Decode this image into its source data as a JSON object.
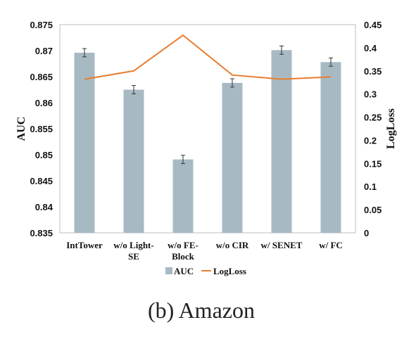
{
  "chart_data": {
    "type": "bar",
    "categories": [
      [
        "IntTower"
      ],
      [
        "w/o Light-",
        "SE"
      ],
      [
        "w/o FE-",
        "Block"
      ],
      [
        "w/o CIR"
      ],
      [
        "w/ SENET"
      ],
      [
        "w/ FC"
      ]
    ],
    "series": [
      {
        "name": "AUC",
        "type": "bar",
        "axis": "left",
        "values": [
          0.8696,
          0.8625,
          0.8491,
          0.8638,
          0.8701,
          0.8678
        ],
        "error": [
          0.0008,
          0.0008,
          0.0008,
          0.0008,
          0.0008,
          0.0008
        ],
        "color": "#a7bac3"
      },
      {
        "name": "LogLoss",
        "type": "line",
        "axis": "right",
        "values": [
          0.332,
          0.35,
          0.427,
          0.341,
          0.332,
          0.337
        ],
        "color": "#e87d2e"
      }
    ],
    "ylabel": "AUC",
    "y2label": "LogLoss",
    "ylim": [
      0.835,
      0.875
    ],
    "y2lim": [
      0,
      0.45
    ],
    "yticks": [
      "0.835",
      "0.84",
      "0.845",
      "0.85",
      "0.855",
      "0.86",
      "0.865",
      "0.87",
      "0.875"
    ],
    "y2ticks": [
      "0",
      "0.05",
      "0.1",
      "0.15",
      "0.2",
      "0.25",
      "0.3",
      "0.35",
      "0.4",
      "0.45"
    ],
    "grid": false,
    "legend": "bottom"
  },
  "caption": "(b) Amazon"
}
